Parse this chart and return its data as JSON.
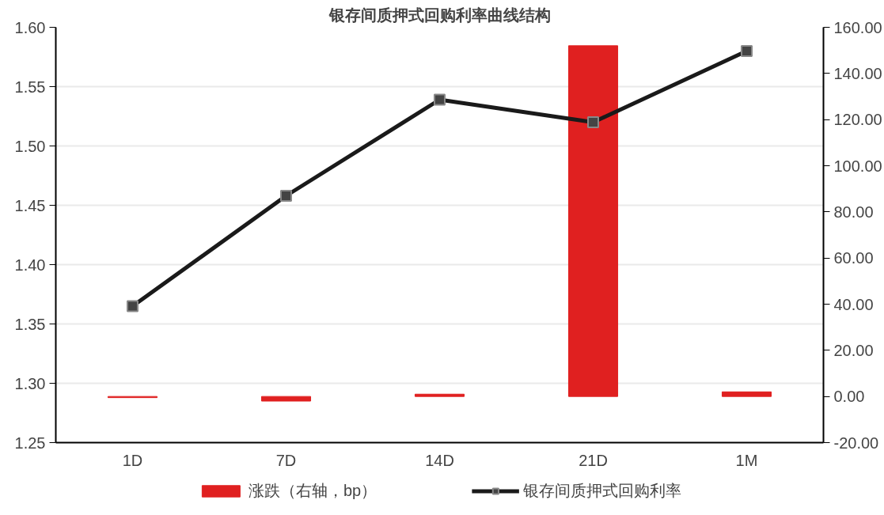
{
  "chart_data": {
    "type": "bar",
    "title": "银存间质押式回购利率曲线结构",
    "categories": [
      "1D",
      "7D",
      "14D",
      "21D",
      "1M"
    ],
    "series": [
      {
        "name": "涨跌（右轴，bp）",
        "axis": "y2",
        "color": "#e02020",
        "values": [
          -0.5,
          -2,
          1,
          152,
          2
        ]
      },
      {
        "name": "银存间质押式回购利率",
        "type": "line",
        "color": "#1a1a1a",
        "marker": "square",
        "values": [
          1.365,
          1.458,
          1.539,
          1.52,
          1.58
        ]
      }
    ],
    "ylim": [
      1.25,
      1.6
    ],
    "yticks": [
      {
        "value": 1.25,
        "label": "1.25"
      },
      {
        "value": 1.3,
        "label": "1.30"
      },
      {
        "value": 1.35,
        "label": "1.35"
      },
      {
        "value": 1.4,
        "label": "1.40"
      },
      {
        "value": 1.45,
        "label": "1.45"
      },
      {
        "value": 1.5,
        "label": "1.50"
      },
      {
        "value": 1.55,
        "label": "1.55"
      },
      {
        "value": 1.6,
        "label": "1.60"
      }
    ],
    "y2lim": [
      -20,
      160
    ],
    "y2ticks": [
      {
        "value": -20,
        "label": "-20.00"
      },
      {
        "value": 0,
        "label": "0.00"
      },
      {
        "value": 20,
        "label": "20.00"
      },
      {
        "value": 40,
        "label": "40.00"
      },
      {
        "value": 60,
        "label": "60.00"
      },
      {
        "value": 80,
        "label": "80.00"
      },
      {
        "value": 100,
        "label": "100.00"
      },
      {
        "value": 120,
        "label": "120.00"
      },
      {
        "value": 140,
        "label": "140.00"
      },
      {
        "value": 160,
        "label": "160.00"
      }
    ],
    "grid": "y",
    "legend": "bottom"
  }
}
